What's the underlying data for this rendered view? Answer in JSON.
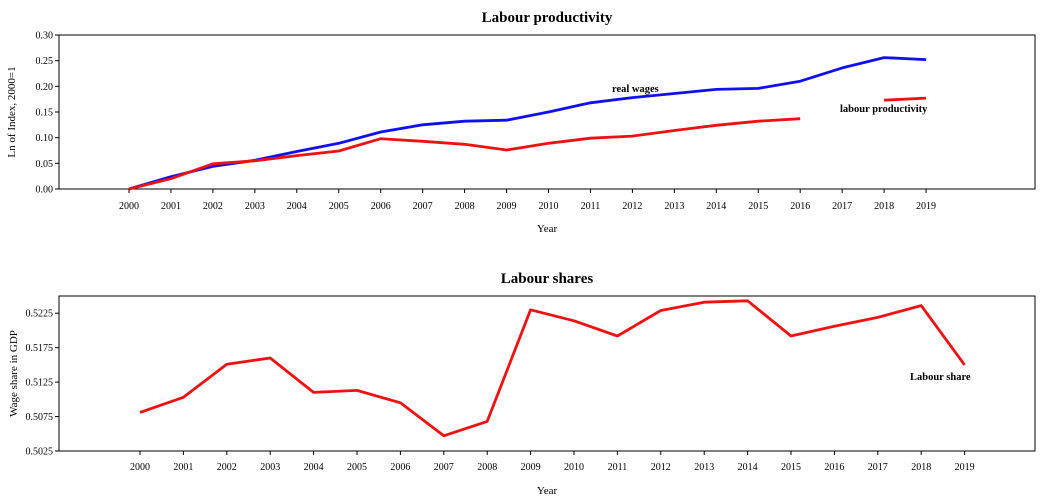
{
  "chart_data": [
    {
      "type": "line",
      "title": "Labour productivity",
      "xlabel": "Year",
      "ylabel": "Ln of Index, 2000=1",
      "categories": [
        "2000",
        "2001",
        "2002",
        "2003",
        "2004",
        "2005",
        "2006",
        "2007",
        "2008",
        "2009",
        "2010",
        "2011",
        "2012",
        "2013",
        "2014",
        "2015",
        "2016",
        "2017",
        "2018",
        "2019"
      ],
      "ylim": [
        0,
        0.3
      ],
      "yticks": [
        "0.00",
        "0.05",
        "0.10",
        "0.15",
        "0.20",
        "0.25",
        "0.30"
      ],
      "grid": false,
      "series": [
        {
          "name": "real wages",
          "color": "#1010ee",
          "values": [
            0.0,
            0.024,
            0.044,
            0.056,
            0.073,
            0.089,
            0.111,
            0.125,
            0.132,
            0.134,
            0.15,
            0.168,
            0.178,
            0.186,
            0.194,
            0.196,
            0.21,
            0.236,
            0.256,
            0.252
          ]
        },
        {
          "name": "labour productivity",
          "color": "#ee1111",
          "values": [
            0.0,
            0.02,
            0.049,
            0.055,
            0.065,
            0.074,
            0.098,
            0.093,
            0.087,
            0.076,
            0.089,
            0.099,
            0.103,
            0.114,
            0.124,
            0.132,
            0.137,
            null,
            0.173,
            0.177
          ]
        }
      ]
    },
    {
      "type": "line",
      "title": "Labour shares",
      "xlabel": "Year",
      "ylabel": "Wage share in GDP",
      "categories": [
        "2000",
        "2001",
        "2002",
        "2003",
        "2004",
        "2005",
        "2006",
        "2007",
        "2008",
        "2009",
        "2010",
        "2011",
        "2012",
        "2013",
        "2014",
        "2015",
        "2016",
        "2017",
        "2018",
        "2019"
      ],
      "ylim": [
        0.5025,
        0.525
      ],
      "yticks": [
        "0.5025",
        "0.5075",
        "0.5125",
        "0.5175",
        "0.5225"
      ],
      "grid": false,
      "series": [
        {
          "name": "Labour share",
          "color": "#ee1111",
          "values": [
            0.5081,
            0.5103,
            0.5151,
            0.516,
            0.511,
            0.5113,
            0.5095,
            0.5047,
            0.5068,
            0.523,
            0.5214,
            0.5192,
            0.5229,
            0.5241,
            0.5243,
            0.5192,
            0.5206,
            0.5219,
            0.5236,
            0.515
          ]
        }
      ]
    }
  ]
}
